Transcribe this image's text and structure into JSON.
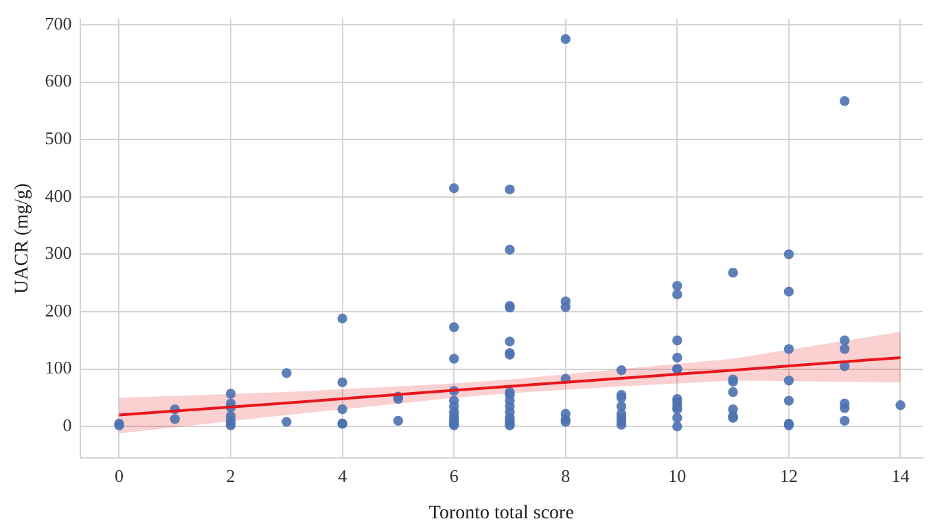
{
  "chart_data": {
    "type": "scatter",
    "xlabel": "Toronto total score",
    "ylabel": "UACR (mg/g)",
    "xlim": [
      -0.7,
      14.4
    ],
    "ylim": [
      -55,
      710
    ],
    "xticks": [
      0,
      2,
      4,
      6,
      8,
      10,
      12,
      14
    ],
    "yticks": [
      0,
      100,
      200,
      300,
      400,
      500,
      600,
      700
    ],
    "grid": true,
    "legend": false,
    "marker": "circle",
    "series": [
      {
        "color": "#4c72b0",
        "x": [
          0,
          0,
          1,
          1,
          2,
          2,
          2,
          2,
          2,
          2,
          2,
          3,
          3,
          4,
          4,
          4,
          4,
          4,
          5,
          5,
          5,
          6,
          6,
          6,
          6,
          6,
          6,
          6,
          6,
          6,
          6,
          6,
          6,
          7,
          7,
          7,
          7,
          7,
          7,
          7,
          7,
          7,
          7,
          7,
          7,
          7,
          7,
          7,
          7,
          8,
          8,
          8,
          8,
          8,
          8,
          8,
          9,
          9,
          9,
          9,
          9,
          9,
          9,
          9,
          10,
          10,
          10,
          10,
          10,
          10,
          10,
          10,
          10,
          10,
          10,
          10,
          11,
          11,
          11,
          11,
          11,
          11,
          11,
          12,
          12,
          12,
          12,
          12,
          12,
          12,
          13,
          13,
          13,
          13,
          13,
          13,
          13,
          14
        ],
        "values": [
          2,
          5,
          30,
          13,
          57,
          40,
          33,
          18,
          10,
          5,
          2,
          93,
          8,
          188,
          77,
          30,
          5,
          5,
          52,
          48,
          10,
          415,
          173,
          118,
          62,
          45,
          35,
          25,
          18,
          12,
          8,
          5,
          2,
          413,
          308,
          210,
          207,
          148,
          128,
          125,
          60,
          55,
          45,
          35,
          25,
          15,
          10,
          5,
          2,
          675,
          218,
          208,
          83,
          22,
          12,
          8,
          98,
          55,
          50,
          35,
          22,
          15,
          8,
          3,
          245,
          230,
          150,
          120,
          100,
          100,
          48,
          42,
          35,
          30,
          15,
          0,
          268,
          82,
          78,
          60,
          30,
          18,
          15,
          300,
          235,
          135,
          80,
          45,
          5,
          2,
          567,
          150,
          135,
          105,
          40,
          32,
          10,
          37
        ]
      },
      {
        "type": "line",
        "color": "#e8161b",
        "marker": "none",
        "x": [
          0,
          3,
          6,
          7,
          9,
          11,
          14
        ],
        "values": [
          20,
          41,
          63,
          70,
          84,
          98,
          120
        ],
        "lower": [
          -12,
          20,
          50,
          58,
          70,
          80,
          77
        ],
        "upper": [
          50,
          60,
          75,
          82,
          100,
          118,
          165
        ]
      }
    ]
  }
}
